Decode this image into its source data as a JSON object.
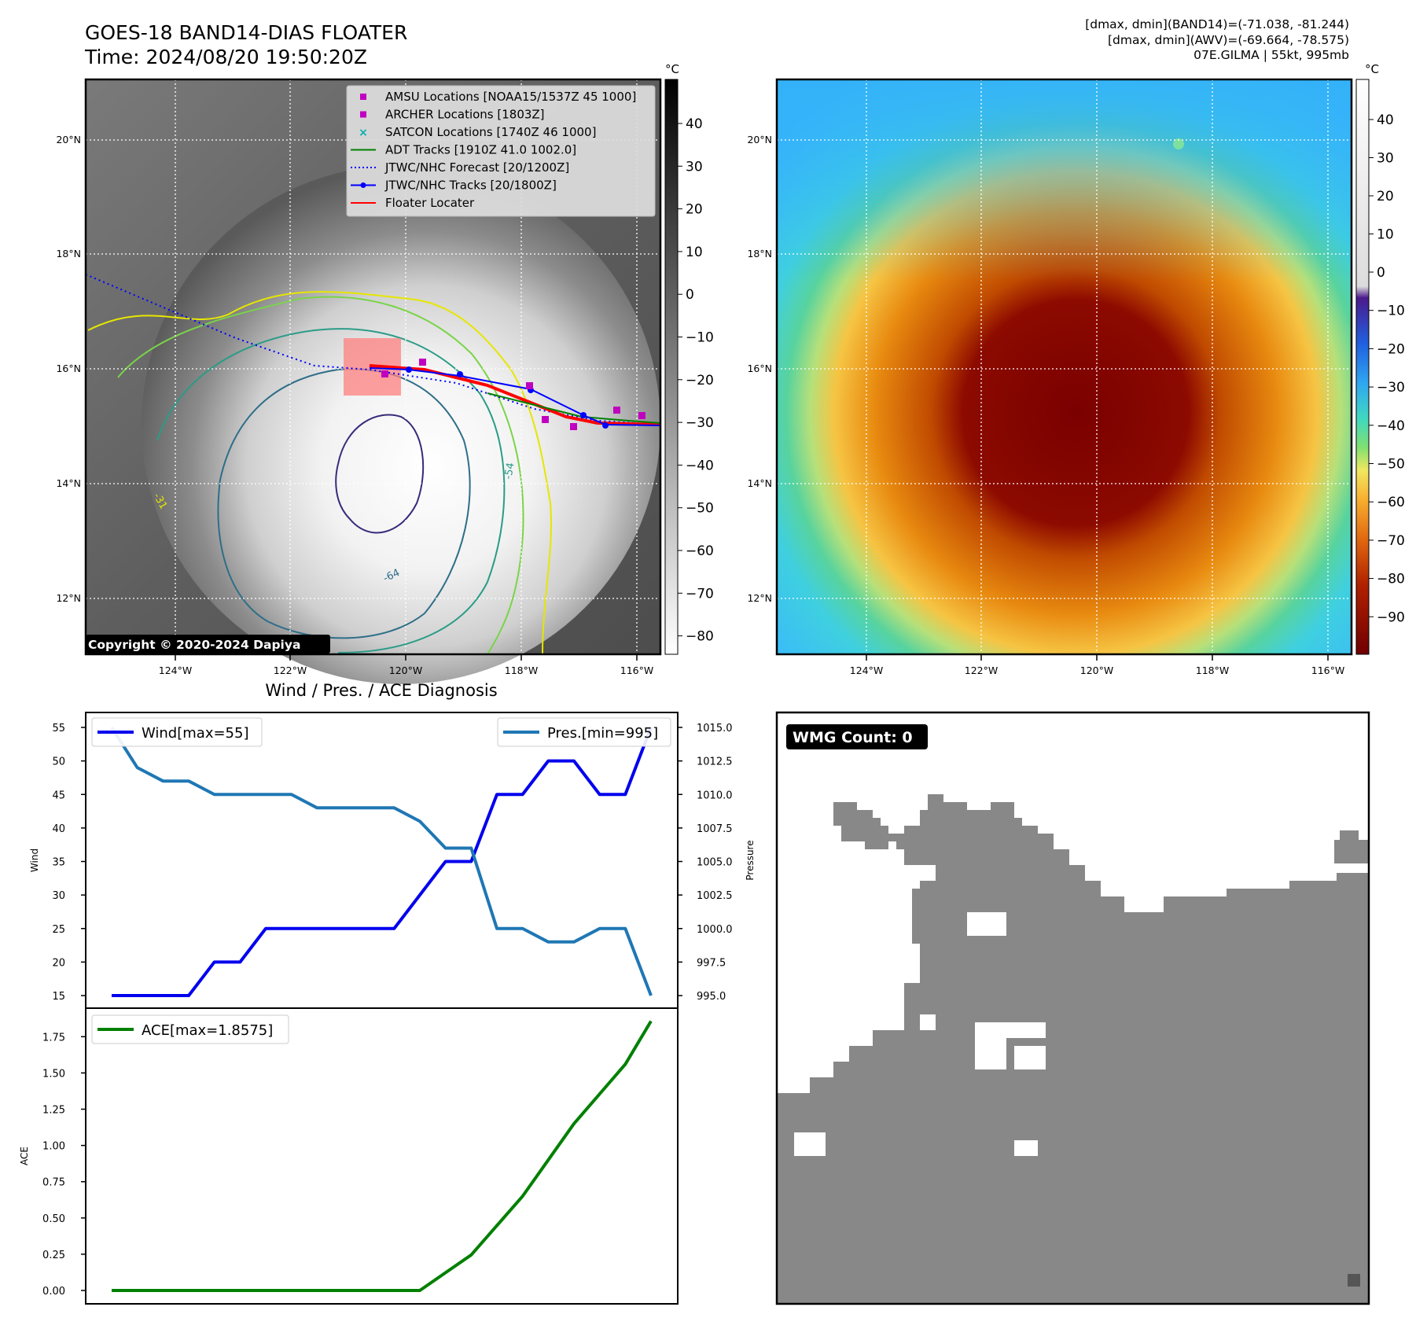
{
  "header": {
    "title_line1": "GOES-18 BAND14-DIAS FLOATER",
    "title_line2": "Time: 2024/08/20 19:50:20Z",
    "info_line1": "[dmax, dmin](BAND14)=(-71.038, -81.244)",
    "info_line2": "[dmax, dmin](AWV)=(-69.664, -78.575)",
    "info_line3": "07E.GILMA | 55kt, 995mb"
  },
  "map_panels": {
    "lon_ticks": [
      "124°W",
      "122°W",
      "120°W",
      "118°W",
      "116°W"
    ],
    "lat_ticks": [
      "20°N",
      "18°N",
      "16°N",
      "14°N",
      "12°N"
    ],
    "colorbar_unit": "°C",
    "ir_colorbar_ticks": [
      40,
      30,
      20,
      10,
      0,
      -10,
      -20,
      -30,
      -40,
      -50,
      -60,
      -70,
      -80
    ],
    "awv_colorbar_ticks": [
      40,
      30,
      20,
      10,
      0,
      -10,
      -20,
      -30,
      -40,
      -50,
      -60,
      -70,
      -80,
      -90
    ],
    "copyright": "Copyright © 2020-2024 Dapiya",
    "contour_labels": [
      "-31",
      "-54",
      "-64"
    ],
    "legend": [
      {
        "label": "AMSU Locations [NOAA15/1537Z 45 1000]",
        "kind": "square",
        "color": "#c000c0"
      },
      {
        "label": "ARCHER Locations [1803Z]",
        "kind": "square",
        "color": "#c000c0"
      },
      {
        "label": "SATCON Locations [1740Z 46 1000]",
        "kind": "x",
        "color": "#00b0b0"
      },
      {
        "label": "ADT Tracks [1910Z 41.0 1002.0]",
        "kind": "line",
        "color": "#008000"
      },
      {
        "label": "JTWC/NHC Forecast [20/1200Z]",
        "kind": "dotted",
        "color": "#0000ff"
      },
      {
        "label": "JTWC/NHC Tracks [20/1800Z]",
        "kind": "line-dot",
        "color": "#0000ff"
      },
      {
        "label": "Floater Locater",
        "kind": "line",
        "color": "#ff0000"
      }
    ]
  },
  "chart_data": [
    {
      "type": "line",
      "title": "Wind / Pres. / ACE Diagnosis",
      "ylabel": "Wind",
      "ylabel_right": "Pressure",
      "ylim": [
        15,
        55
      ],
      "ylim_right": [
        995,
        1015
      ],
      "yticks": [
        15,
        20,
        25,
        30,
        35,
        40,
        45,
        50,
        55
      ],
      "yticks_right": [
        "995.0",
        "997.5",
        "1000.0",
        "1002.5",
        "1005.0",
        "1007.5",
        "1010.0",
        "1012.5",
        "1015.0"
      ],
      "series": [
        {
          "name": "Wind[max=55]",
          "color": "#0000ee",
          "values": [
            15,
            15,
            15,
            15,
            20,
            20,
            25,
            25,
            25,
            25,
            25,
            25,
            30,
            35,
            35,
            45,
            45,
            50,
            50,
            45,
            45,
            55
          ]
        },
        {
          "name": "Pres.[min=995]",
          "color": "#1f77b4",
          "values": [
            1015,
            1012,
            1011,
            1011,
            1010,
            1010,
            1010,
            1010,
            1009,
            1009,
            1009,
            1009,
            1008,
            1006,
            1006,
            1000,
            1000,
            999,
            999,
            1000,
            1000,
            995
          ]
        }
      ]
    },
    {
      "type": "line",
      "ylabel": "ACE",
      "ylim": [
        -0.1,
        1.95
      ],
      "yticks": [
        "0.00",
        "0.25",
        "0.50",
        "0.75",
        "1.00",
        "1.25",
        "1.50",
        "1.75"
      ],
      "series": [
        {
          "name": "ACE[max=1.8575]",
          "color": "#008000",
          "values": [
            0,
            0,
            0,
            0,
            0,
            0,
            0,
            0,
            0,
            0,
            0,
            0,
            0,
            0.1225,
            0.245,
            0.4475,
            0.65,
            0.9,
            1.15,
            1.355,
            1.56,
            1.8575
          ]
        }
      ]
    }
  ],
  "wmg": {
    "label": "WMG Count: 0"
  }
}
